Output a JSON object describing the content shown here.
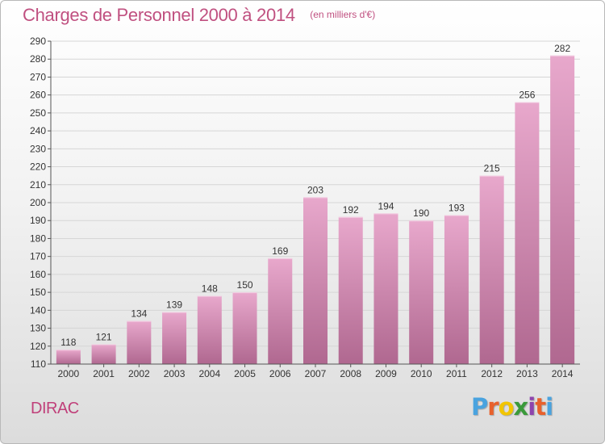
{
  "chart_data": {
    "type": "bar",
    "title": "Charges de Personnel 2000 à 2014",
    "subtitle": "(en milliers d'€)",
    "categories": [
      "2000",
      "2001",
      "2002",
      "2003",
      "2004",
      "2005",
      "2006",
      "2007",
      "2008",
      "2009",
      "2010",
      "2011",
      "2012",
      "2013",
      "2014"
    ],
    "values": [
      118,
      121,
      134,
      139,
      148,
      150,
      169,
      203,
      192,
      194,
      190,
      193,
      215,
      256,
      282
    ],
    "ylim": [
      110,
      290
    ],
    "ytick_step": 10,
    "grid": true,
    "bar_color_top": "#e8a8cc",
    "bar_color_bottom": "#b06890"
  },
  "footer": {
    "commune": "DIRAC",
    "brand": "Proxiti",
    "brand_colors": [
      "#4aa3df",
      "#e8612c",
      "#f2c500",
      "#3a9a3a",
      "#8e44ad",
      "#e8612c",
      "#4aa3df"
    ]
  }
}
